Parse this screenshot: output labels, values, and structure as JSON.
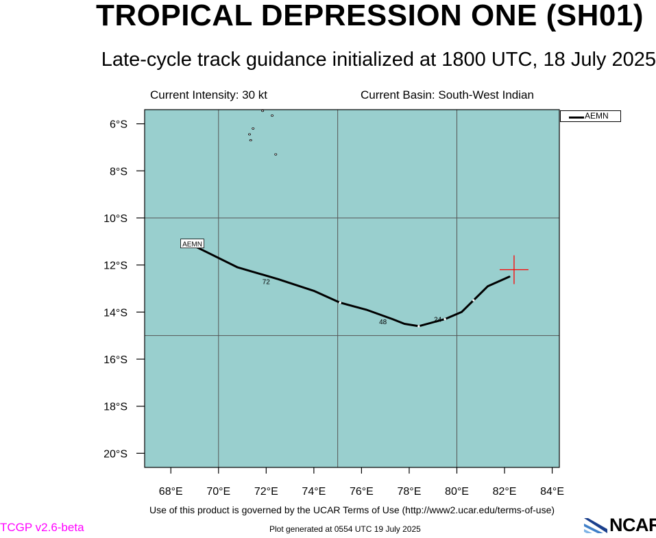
{
  "title": "TROPICAL DEPRESSION ONE (SH01)",
  "subtitle": "Late-cycle track guidance initialized at 1800 UTC, 18 July 2025",
  "info": {
    "intensity": "Current Intensity: 30 kt",
    "basin": "Current Basin: South-West Indian"
  },
  "footer": {
    "terms": "Use of this product is governed by the UCAR Terms of Use (http://www2.ucar.edu/terms-of-use)",
    "version": "TCGP v2.6-beta",
    "generated": "Plot generated at 0554 UTC   19 July 2025",
    "logo_text": "NCAR"
  },
  "colors": {
    "ocean": "#99cfce",
    "track": "#000000",
    "current_position_marker": "#ff0000",
    "version_text": "#ff00ff",
    "grid": "#555555"
  },
  "chart_data": {
    "type": "line",
    "title": "TROPICAL DEPRESSION ONE (SH01)",
    "xlabel": "",
    "ylabel": "",
    "xlim": [
      66.9,
      84.3
    ],
    "ylim": [
      -20.6,
      -5.4
    ],
    "x_ticks": [
      68,
      70,
      72,
      74,
      76,
      78,
      80,
      82,
      84
    ],
    "x_tick_labels": [
      "68°E",
      "70°E",
      "72°E",
      "74°E",
      "76°E",
      "78°E",
      "80°E",
      "82°E",
      "84°E"
    ],
    "y_ticks": [
      -6,
      -8,
      -10,
      -12,
      -14,
      -16,
      -18,
      -20
    ],
    "y_tick_labels": [
      "6°S",
      "8°S",
      "10°S",
      "12°S",
      "14°S",
      "16°S",
      "18°S",
      "20°S"
    ],
    "gridlines": {
      "lon": [
        70,
        75,
        80
      ],
      "lat": [
        -10,
        -15
      ]
    },
    "grid": true,
    "legend": {
      "position": "top-right outside",
      "entries": [
        "AEMN"
      ]
    },
    "current_position": {
      "lon": 82.4,
      "lat": -12.2
    },
    "series": [
      {
        "name": "AEMN",
        "lon": [
          82.2,
          81.3,
          80.7,
          80.2,
          79.5,
          78.4,
          77.8,
          77.3,
          76.2,
          75.1,
          74.0,
          72.5,
          70.8,
          69.0
        ],
        "lat": [
          -12.5,
          -12.9,
          -13.5,
          -14.0,
          -14.3,
          -14.6,
          -14.5,
          -14.3,
          -13.9,
          -13.6,
          -13.1,
          -12.6,
          -12.1,
          -11.2
        ],
        "time_labels": [
          {
            "label": "24",
            "lon": 79.2,
            "lat": -14.3
          },
          {
            "label": "48",
            "lon": 76.9,
            "lat": -14.4
          },
          {
            "label": "72",
            "lon": 72.0,
            "lat": -12.7
          }
        ],
        "end_label": "AEMN",
        "end_label_pos": {
          "lon": 68.9,
          "lat": -11.1
        },
        "markers": [
          {
            "lon": 80.7,
            "lat": -13.5
          },
          {
            "lon": 79.5,
            "lat": -14.3
          },
          {
            "lon": 78.4,
            "lat": -14.6
          },
          {
            "lon": 75.1,
            "lat": -13.6
          }
        ]
      }
    ],
    "islands": [
      {
        "lon": 71.85,
        "lat": -5.45
      },
      {
        "lon": 72.25,
        "lat": -5.65
      },
      {
        "lon": 71.45,
        "lat": -6.2
      },
      {
        "lon": 71.3,
        "lat": -6.45
      },
      {
        "lon": 71.35,
        "lat": -6.7
      },
      {
        "lon": 72.4,
        "lat": -7.3
      }
    ]
  }
}
